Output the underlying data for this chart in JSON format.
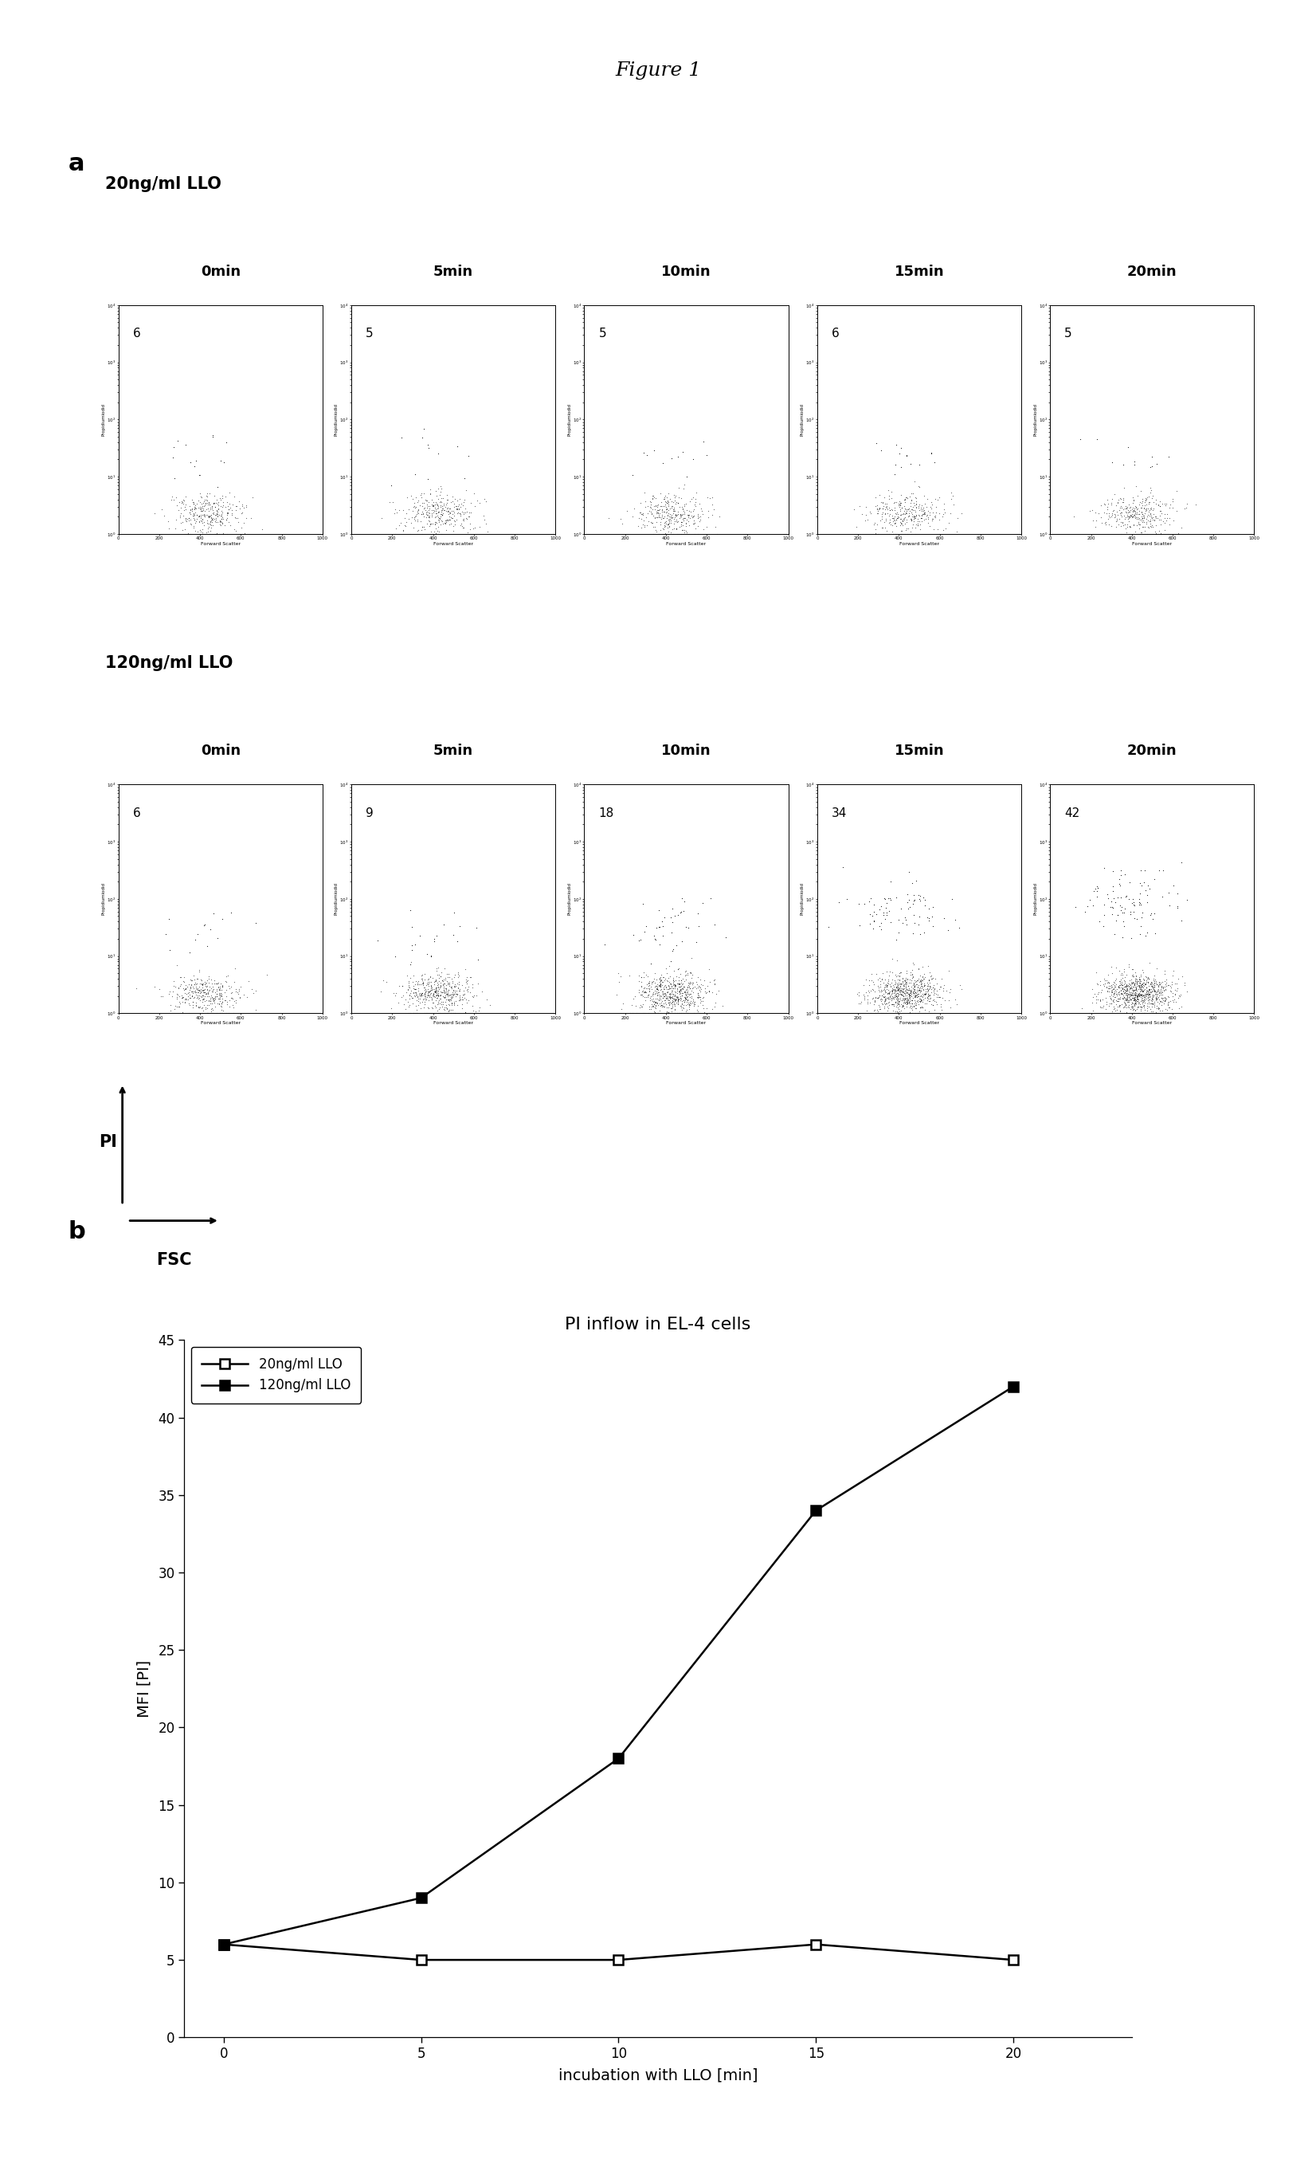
{
  "figure_title": "Figure 1",
  "panel_a_label": "a",
  "panel_b_label": "b",
  "row1_title": "20ng/ml LLO",
  "row2_title": "120ng/ml LLO",
  "time_labels": [
    "0min",
    "5min",
    "10min",
    "15min",
    "20min"
  ],
  "row1_numbers": [
    6,
    5,
    5,
    6,
    5
  ],
  "row2_numbers": [
    6,
    9,
    18,
    34,
    42
  ],
  "xlabel_scatter": "Forward Scatter",
  "ylabel_scatter": "Propidiumiodid",
  "pi_label": "PI",
  "fsc_label": "FSC",
  "plot_title": "PI inflow in EL-4 cells",
  "x_data": [
    0,
    5,
    10,
    15,
    20
  ],
  "y_low": [
    6,
    5,
    5,
    6,
    5
  ],
  "y_high": [
    6,
    9,
    18,
    34,
    42
  ],
  "legend_low": "20ng/ml LLO",
  "legend_high": "120ng/ml LLO",
  "ylabel_plot": "MFI [PI]",
  "xlabel_plot": "incubation with LLO [min]",
  "ylim_plot": [
    0,
    45
  ],
  "yticks_plot": [
    0,
    5,
    10,
    15,
    20,
    25,
    30,
    35,
    40,
    45
  ],
  "xticks_plot": [
    0,
    5,
    10,
    15,
    20
  ],
  "bg_color": "#ffffff",
  "line_color": "#000000",
  "scatter_color": "#000000"
}
